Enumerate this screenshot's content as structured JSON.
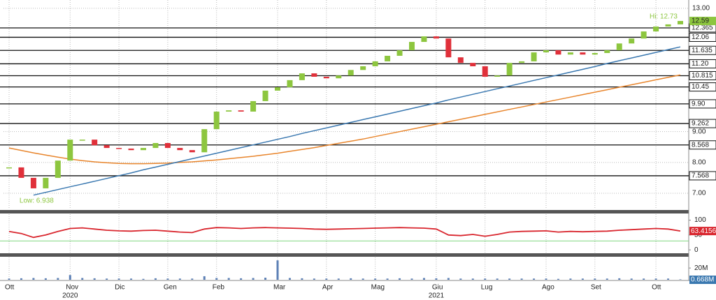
{
  "chart_data": [
    {
      "type": "candlestick",
      "categories": [
        "Ott",
        null,
        null,
        null,
        null,
        "Nov",
        null,
        null,
        null,
        "Dic",
        null,
        null,
        null,
        "Gen",
        null,
        null,
        null,
        "Feb",
        null,
        null,
        null,
        null,
        "Mar",
        null,
        null,
        null,
        "Apr",
        null,
        null,
        null,
        "Mag",
        null,
        null,
        null,
        null,
        "Giu",
        null,
        null,
        null,
        "Lug",
        null,
        null,
        null,
        null,
        "Ago",
        null,
        null,
        null,
        "Set",
        null,
        null,
        null,
        null,
        "Ott",
        null,
        null
      ],
      "years": [
        "2020",
        "2021"
      ],
      "values": [
        7.84,
        7.5,
        7.16,
        7.5,
        8.06,
        8.74,
        8.74,
        8.56,
        8.47,
        8.45,
        8.4,
        8.47,
        8.63,
        8.47,
        8.4,
        8.33,
        9.08,
        9.65,
        9.69,
        9.65,
        9.99,
        10.33,
        10.44,
        10.67,
        10.89,
        10.78,
        10.73,
        10.82,
        11.0,
        11.12,
        11.28,
        11.46,
        11.64,
        11.91,
        12.09,
        12.02,
        11.41,
        11.23,
        11.12,
        10.78,
        10.82,
        11.23,
        11.28,
        11.57,
        11.64,
        11.5,
        11.57,
        11.5,
        11.55,
        11.64,
        11.86,
        12.02,
        12.25,
        12.41,
        12.48,
        12.59
      ],
      "up_color": "#8dc63f",
      "down_color": "#e0303a",
      "series": [
        {
          "color": "#e8852c",
          "values": [
            8.47,
            8.39,
            8.31,
            8.24,
            8.17,
            8.11,
            8.06,
            8.02,
            7.99,
            7.97,
            7.96,
            7.96,
            7.97,
            7.98,
            8.0,
            8.02,
            8.05,
            8.08,
            8.12,
            8.16,
            8.2,
            8.25,
            8.3,
            8.36,
            8.42,
            8.48,
            8.55,
            8.62,
            8.69,
            8.76,
            8.84,
            8.92,
            9.0,
            9.08,
            9.16,
            9.24,
            9.32,
            9.4,
            9.48,
            9.56,
            9.64,
            9.72,
            9.8,
            9.88,
            9.96,
            10.04,
            10.12,
            10.2,
            10.28,
            10.36,
            10.44,
            10.52,
            10.6,
            10.68,
            10.76,
            10.84
          ]
        },
        {
          "color": "#3a78b0",
          "values": [
            null,
            null,
            6.94,
            7.03,
            7.12,
            7.21,
            7.3,
            7.39,
            7.48,
            7.57,
            7.66,
            7.76,
            7.85,
            7.94,
            8.03,
            8.12,
            8.21,
            8.3,
            8.39,
            8.48,
            8.57,
            8.66,
            8.75,
            8.84,
            8.94,
            9.03,
            9.12,
            9.21,
            9.3,
            9.39,
            9.48,
            9.57,
            9.66,
            9.75,
            9.84,
            9.93,
            10.03,
            10.12,
            10.21,
            10.3,
            10.39,
            10.48,
            10.57,
            10.66,
            10.75,
            10.84,
            10.93,
            11.02,
            11.11,
            11.21,
            11.3,
            11.39,
            11.48,
            11.57,
            11.66,
            11.75
          ]
        }
      ],
      "levels": [
        12.365,
        12.06,
        11.635,
        {
          "value": 11.2,
          "label": "11.20"
        },
        10.815,
        {
          "value": 10.45,
          "label": "10.45"
        },
        {
          "value": 9.9,
          "label": "9.90"
        },
        9.262,
        8.568,
        7.568
      ],
      "high": {
        "value": 12.73,
        "label": "Hi: 12.73"
      },
      "low": {
        "value": 6.938,
        "label": "Low: 6.938"
      },
      "last_label": "12.59",
      "ylim": [
        6.48,
        13.27
      ],
      "yticks": [
        {
          "value": 7,
          "label": "7.00"
        },
        {
          "value": 8,
          "label": "8.00"
        },
        {
          "value": 9,
          "label": "9.00"
        },
        {
          "value": 13,
          "label": "13.00"
        }
      ],
      "grid": true
    },
    {
      "type": "line",
      "color": "#d9262e",
      "values": [
        62,
        55,
        42,
        50,
        62,
        72,
        74,
        70,
        66,
        64,
        63,
        65,
        66,
        63,
        60,
        58,
        70,
        75,
        74,
        72,
        74,
        75,
        74,
        73,
        72,
        70,
        69,
        70,
        71,
        72,
        73,
        74,
        75,
        74,
        73,
        70,
        50,
        48,
        52,
        46,
        52,
        60,
        62,
        63,
        64,
        60,
        62,
        61,
        62,
        63,
        66,
        68,
        70,
        72,
        70,
        63.4156
      ],
      "threshold": 30,
      "threshold_color": "#7fd67f",
      "ylim": [
        -9,
        120
      ],
      "yticks": [
        0,
        50,
        100
      ],
      "last_label": "63.4156"
    },
    {
      "type": "bar",
      "color": "#5b7fb5",
      "values": [
        2,
        2.5,
        3,
        2.5,
        3,
        8,
        3,
        2.5,
        2,
        2,
        2,
        1.5,
        2.5,
        2,
        2,
        2,
        6,
        3,
        3,
        2.5,
        3,
        3.5,
        33,
        3,
        2.5,
        2,
        2,
        2,
        2.5,
        2,
        2,
        2,
        2.5,
        2,
        3,
        2.5,
        3,
        2,
        2,
        2,
        2,
        2,
        2,
        2,
        2,
        1.5,
        2,
        2,
        2,
        2,
        2.5,
        2,
        2,
        2,
        2,
        0.668
      ],
      "ylim": [
        0,
        38
      ],
      "yticks": [
        {
          "value": 20,
          "label": "20M"
        }
      ],
      "last_label": "0.668M"
    }
  ]
}
